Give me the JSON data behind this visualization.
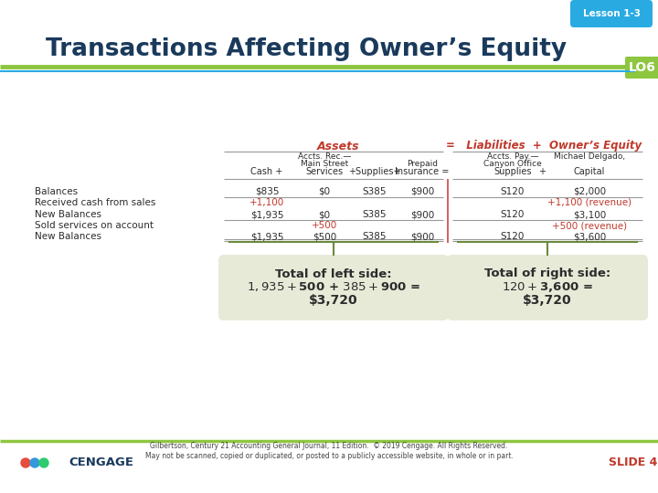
{
  "title": "Transactions Affecting Owner’s Equity",
  "lesson_label": "Lesson 1-3",
  "lo_label": "LO6",
  "slide_label": "SLIDE 4",
  "bg_color": "#ffffff",
  "title_color": "#1a3a5c",
  "green_line_color": "#8dc63f",
  "blue_line_color": "#29abe2",
  "lesson_bubble_color": "#29abe2",
  "lo_box_color": "#8dc63f",
  "red_color": "#c0392b",
  "dark_text": "#1a1a1a",
  "summary_box_color": "#e8ead8",
  "summary_text_color": "#2c2c2c",
  "footer_text_color": "#444444",
  "footer_text": "Gilbertson, Century 21 Accounting General Journal, 11 Edition.  © 2019 Cengage. All Rights Reserved.\nMay not be scanned, copied or duplicated, or posted to a publicly accessible website, in whole or in part.",
  "rows": [
    {
      "label": "Balances",
      "cash": "$835",
      "svc": "$0",
      "sup": "S385",
      "ins": "$900",
      "ap": "S120",
      "cap": "$2,000",
      "cash_c": "#2c2c2c",
      "svc_c": "#2c2c2c",
      "sup_c": "#2c2c2c",
      "ins_c": "#2c2c2c",
      "ap_c": "#2c2c2c",
      "cap_c": "#2c2c2c"
    },
    {
      "label": "Received cash from sales",
      "cash": "+1,100",
      "svc": "",
      "sup": "",
      "ins": "",
      "ap": "",
      "cap": "+1,100 (revenue)",
      "cash_c": "#c0392b",
      "svc_c": "#c0392b",
      "sup_c": "#c0392b",
      "ins_c": "#c0392b",
      "ap_c": "#c0392b",
      "cap_c": "#c0392b"
    },
    {
      "label": "New Balances",
      "cash": "$1,935",
      "svc": "$0",
      "sup": "S385",
      "ins": "$900",
      "ap": "S120",
      "cap": "$3,100",
      "cash_c": "#2c2c2c",
      "svc_c": "#2c2c2c",
      "sup_c": "#2c2c2c",
      "ins_c": "#2c2c2c",
      "ap_c": "#2c2c2c",
      "cap_c": "#2c2c2c"
    },
    {
      "label": "Sold services on account",
      "cash": "",
      "svc": "+500",
      "sup": "",
      "ins": "",
      "ap": "",
      "cap": "+500 (revenue)",
      "cash_c": "#c0392b",
      "svc_c": "#c0392b",
      "sup_c": "#c0392b",
      "ins_c": "#c0392b",
      "ap_c": "#c0392b",
      "cap_c": "#c0392b"
    },
    {
      "label": "New Balances",
      "cash": "$1,935",
      "svc": "$500",
      "sup": "S385",
      "ins": "$900",
      "ap": "S120",
      "cap": "$3,600",
      "cash_c": "#2c2c2c",
      "svc_c": "#2c2c2c",
      "sup_c": "#2c2c2c",
      "ins_c": "#2c2c2c",
      "ap_c": "#2c2c2c",
      "cap_c": "#2c2c2c"
    }
  ],
  "left_box_text": "Total of left side:\n$1,935 + $500 + $385 + $900 =\n$3,720",
  "right_box_text": "Total of right side:\n$120 + $3,600 =\n$3,720"
}
